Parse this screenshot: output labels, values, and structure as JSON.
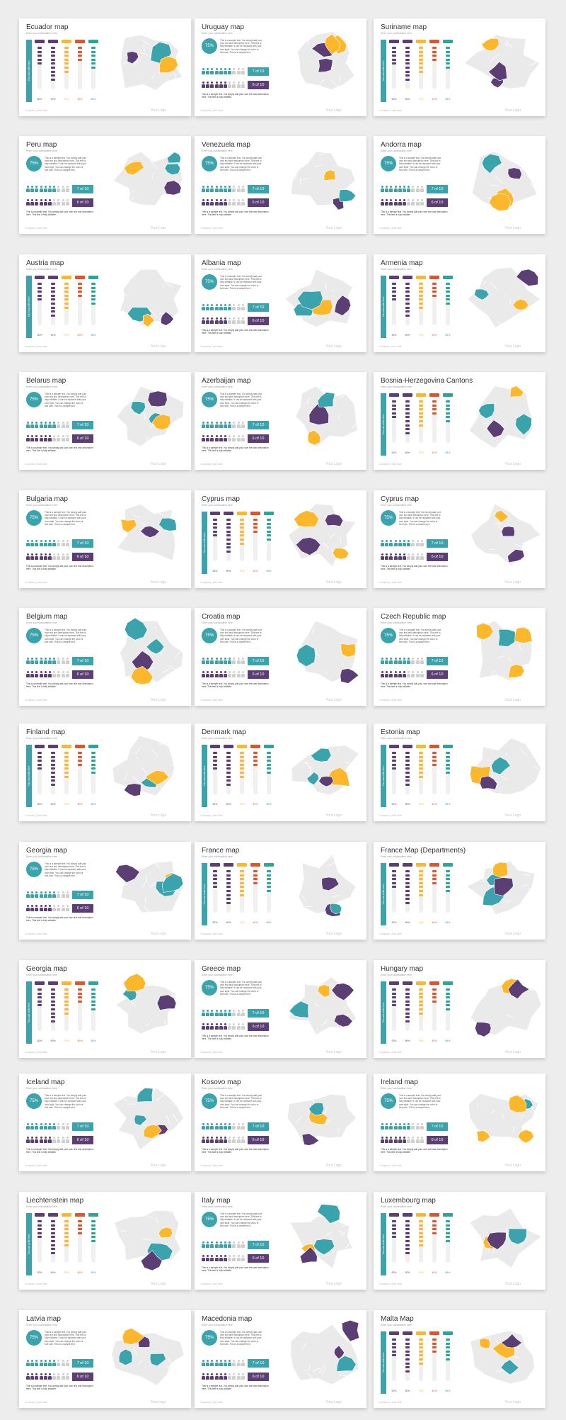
{
  "colors": {
    "teal": "#3aa3ac",
    "purple": "#5b3e73",
    "yellow": "#fcb72a",
    "red": "#e0542b",
    "green": "#2ba59b",
    "light": "#eaeaea"
  },
  "slide_common": {
    "subtitle": "Enter your subheadline here",
    "footer_left": "Company | Add date",
    "footer_right": "Your Logo",
    "vertical_label": "You can write here",
    "circle_value": "75%",
    "people_text": "This is a sample text. You simply add your own text and description here. This text is fully editable. It can be replaced with your own style. You can change the color or font size. This is a sample text.",
    "box1": "7 of 10",
    "box2": "6 of 10",
    "people_note": "This is a sample text. You simply add your own text and description here. This text is fully editable.",
    "col_heads": [
      "Add Title",
      "Add Title",
      "Add Title",
      "Add Title",
      "Add Title"
    ],
    "col_pcts": [
      "30%",
      "90%",
      "70%",
      "40%",
      "55%"
    ]
  },
  "slides": [
    {
      "title": "Ecuador map",
      "layout": "bars",
      "map": "ecuador"
    },
    {
      "title": "Uruguay map",
      "layout": "people",
      "map": "uruguay"
    },
    {
      "title": "Suriname map",
      "layout": "bars",
      "map": "suriname"
    },
    {
      "title": "Peru map",
      "layout": "people",
      "map": "peru"
    },
    {
      "title": "Venezuela map",
      "layout": "people",
      "map": "venezuela"
    },
    {
      "title": "Andorra map",
      "layout": "people",
      "map": "andorra"
    },
    {
      "title": "Austria map",
      "layout": "bars",
      "map": "austria"
    },
    {
      "title": "Albania map",
      "layout": "people",
      "map": "albania"
    },
    {
      "title": "Armenia map",
      "layout": "bars",
      "map": "armenia"
    },
    {
      "title": "Belarus map",
      "layout": "people",
      "map": "belarus"
    },
    {
      "title": "Azerbaijan map",
      "layout": "people",
      "map": "azerbaijan"
    },
    {
      "title": "Bosnia-Herzegovina Cantons",
      "layout": "bars",
      "map": "bosnia"
    },
    {
      "title": "Bulgaria map",
      "layout": "people",
      "map": "bulgaria"
    },
    {
      "title": "Cyprus map",
      "layout": "bars",
      "map": "cyprus"
    },
    {
      "title": "Cyprus map",
      "layout": "people",
      "map": "cyprus2"
    },
    {
      "title": "Belgium map",
      "layout": "people",
      "map": "belgium"
    },
    {
      "title": "Croatia map",
      "layout": "people",
      "map": "croatia"
    },
    {
      "title": "Czech Republic map",
      "layout": "people",
      "map": "czech"
    },
    {
      "title": "Finland map",
      "layout": "bars",
      "map": "finland"
    },
    {
      "title": "Denmark map",
      "layout": "bars",
      "map": "denmark"
    },
    {
      "title": "Estonia map",
      "layout": "bars",
      "map": "estonia"
    },
    {
      "title": "Georgia map",
      "layout": "people",
      "map": "georgia"
    },
    {
      "title": "France map",
      "layout": "bars",
      "map": "france"
    },
    {
      "title": "France Map (Departments)",
      "layout": "bars",
      "map": "france2"
    },
    {
      "title": "Georgia map",
      "layout": "bars",
      "map": "georgia2"
    },
    {
      "title": "Greece map",
      "layout": "people",
      "map": "greece"
    },
    {
      "title": "Hungary map",
      "layout": "bars",
      "map": "hungary"
    },
    {
      "title": "Iceland map",
      "layout": "people",
      "map": "iceland"
    },
    {
      "title": "Kosovo map",
      "layout": "people",
      "map": "kosovo"
    },
    {
      "title": "Ireland map",
      "layout": "people",
      "map": "ireland"
    },
    {
      "title": "Liechtenstein map",
      "layout": "bars",
      "map": "liechtenstein"
    },
    {
      "title": "Italy map",
      "layout": "people",
      "map": "italy"
    },
    {
      "title": "Luxembourg map",
      "layout": "bars",
      "map": "luxembourg"
    },
    {
      "title": "Latvia map",
      "layout": "people",
      "map": "latvia"
    },
    {
      "title": "Macedonia map",
      "layout": "people",
      "map": "macedonia"
    },
    {
      "title": "Malta Map",
      "layout": "bars",
      "map": "malta"
    }
  ]
}
